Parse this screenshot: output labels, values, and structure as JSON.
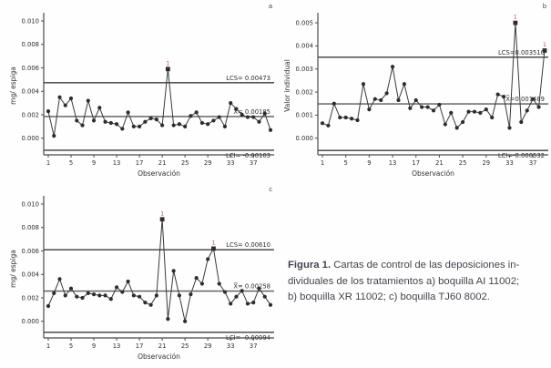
{
  "figure": {
    "caption": {
      "lead": "Figura 1.",
      "line1_rest": " Cartas de control de las deposiciones in-",
      "line2": "dividuales de los tratamientos a) boquilla AI 11002;",
      "line3": "b) boquilla XR 11002; c) boquilla TJ60 8002."
    }
  },
  "colors": {
    "point": "#2d2d2d",
    "line": "#3a3a3a",
    "limit_line": "#3c3c3c",
    "center_line": "#8a8a8a",
    "axis": "#4a4a4a",
    "flag": "#b3402e",
    "text": "#2f2f2f"
  },
  "chart_data": [
    {
      "type": "line",
      "subtype": "individuals-control-chart",
      "corner_label": "a",
      "xlabel": "Observación",
      "ylabel": "mg/ espiga",
      "observations": 40,
      "xticks": [
        1,
        5,
        9,
        13,
        17,
        21,
        25,
        29,
        33,
        37
      ],
      "yticks": [
        0,
        0.002,
        0.004,
        0.006,
        0.008,
        0.01
      ],
      "ytick_labels": [
        "0.000",
        "0.002",
        "0.004",
        "0.006",
        "0.008",
        "0.010"
      ],
      "ylim": [
        -0.00142,
        0.01039
      ],
      "control_limits": {
        "lcs": 0.00473,
        "mean": 0.00185,
        "lci": -0.00103
      },
      "annotations": {
        "lcs": "LCS= 0.00473",
        "mean": "X̅= 0.00185",
        "lci": "LCI= -0.00103"
      },
      "values": [
        0.0023,
        0.0002,
        0.0035,
        0.0028,
        0.0034,
        0.0015,
        0.0011,
        0.0032,
        0.0015,
        0.0026,
        0.0014,
        0.0013,
        0.0012,
        0.0008,
        0.0022,
        0.001,
        0.001,
        0.0014,
        0.0017,
        0.0016,
        0.0011,
        0.0059,
        0.0011,
        0.0012,
        0.001,
        0.0019,
        0.0022,
        0.0013,
        0.0012,
        0.0015,
        0.0018,
        0.001,
        0.003,
        0.0025,
        0.002,
        0.0018,
        0.0018,
        0.0014,
        0.0021,
        0.0007
      ],
      "out_of_control": [
        22
      ],
      "flag_label": "1"
    },
    {
      "type": "line",
      "subtype": "individuals-control-chart",
      "corner_label": "b",
      "xlabel": "Observación",
      "ylabel": "Valor individual",
      "observations": 39,
      "xticks": [
        1,
        5,
        9,
        13,
        17,
        21,
        25,
        29,
        33,
        37
      ],
      "yticks": [
        0,
        0.001,
        0.002,
        0.003,
        0.004,
        0.005
      ],
      "ytick_labels": [
        "0.000",
        "0.001",
        "0.002",
        "0.003",
        "0.004",
        "0.005"
      ],
      "ylim": [
        -0.00072,
        0.00528
      ],
      "control_limits": {
        "lcs": 0.00351,
        "mean": 0.001489,
        "lci": -0.000532
      },
      "annotations": {
        "lcs": "LCS=0.003510",
        "mean": "X̅=0.001489",
        "lci": "LCI=-0.000532"
      },
      "values": [
        0.00065,
        0.00055,
        0.0015,
        0.0009,
        0.0009,
        0.00085,
        0.00078,
        0.00235,
        0.00125,
        0.0017,
        0.00165,
        0.00195,
        0.0031,
        0.00165,
        0.00235,
        0.0013,
        0.00165,
        0.00135,
        0.00135,
        0.0012,
        0.00145,
        0.0006,
        0.0011,
        0.00045,
        0.0007,
        0.00115,
        0.00115,
        0.0011,
        0.00125,
        0.0009,
        0.0019,
        0.0018,
        0.00045,
        0.005,
        0.0007,
        0.0012,
        0.0017,
        0.00135,
        0.0038
      ],
      "out_of_control": [
        34,
        39
      ],
      "flag_label": "1"
    },
    {
      "type": "line",
      "subtype": "individuals-control-chart",
      "corner_label": "c",
      "xlabel": "Observación",
      "ylabel": "mg/ espiga",
      "observations": 40,
      "xticks": [
        1,
        5,
        9,
        13,
        17,
        21,
        25,
        29,
        33,
        37
      ],
      "yticks": [
        0,
        0.002,
        0.004,
        0.006,
        0.008,
        0.01
      ],
      "ytick_labels": [
        "0.000",
        "0.002",
        "0.004",
        "0.006",
        "0.008",
        "0.010"
      ],
      "ylim": [
        -0.00142,
        0.01039
      ],
      "control_limits": {
        "lcs": 0.0061,
        "mean": 0.00258,
        "lci": -0.00094
      },
      "annotations": {
        "lcs": "LCS= 0.00610",
        "mean": "X̅= 0.00258",
        "lci": "LCI= -0.00094"
      },
      "values": [
        0.0013,
        0.0024,
        0.0036,
        0.0022,
        0.0028,
        0.0021,
        0.002,
        0.0024,
        0.0023,
        0.0022,
        0.0022,
        0.0019,
        0.0029,
        0.0025,
        0.0034,
        0.0022,
        0.0021,
        0.0016,
        0.0014,
        0.0022,
        0.0087,
        0.0002,
        0.0043,
        0.0022,
        0.0,
        0.0023,
        0.0037,
        0.0032,
        0.0053,
        0.0062,
        0.0032,
        0.0025,
        0.0015,
        0.0021,
        0.0026,
        0.0015,
        0.0016,
        0.0028,
        0.0021,
        0.0014
      ],
      "out_of_control": [
        21,
        30
      ],
      "flag_label": "1"
    }
  ]
}
